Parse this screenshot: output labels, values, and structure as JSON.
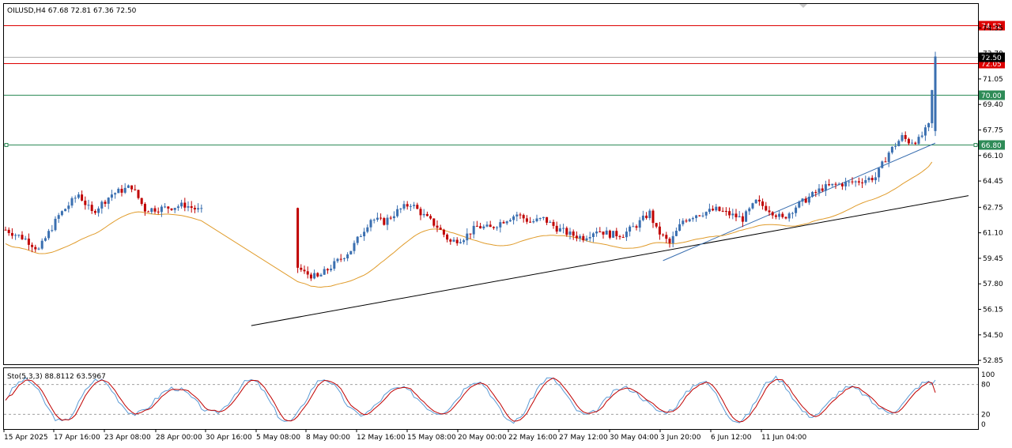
{
  "header": {
    "symbol_info": "OILUSD,H4  67.68 72.81 67.36 72.50"
  },
  "sub_header": {
    "stoch_info": "Sto(5,3,3) 88.8112 63.5967"
  },
  "chart_data": [
    {
      "type": "candlestick",
      "symbol": "OILUSD",
      "timeframe": "H4",
      "ohlc_last": {
        "open": 67.68,
        "high": 72.81,
        "low": 67.36,
        "close": 72.5
      },
      "y_ticks": [
        "52.85",
        "54.50",
        "56.15",
        "57.80",
        "59.45",
        "61.10",
        "62.75",
        "64.45",
        "66.10",
        "67.75",
        "69.40",
        "71.05",
        "72.70",
        "74.35"
      ],
      "ylim": [
        52.6,
        75.9
      ],
      "x_ticks": [
        "15 Apr 2025",
        "17 Apr 16:00",
        "23 Apr 08:00",
        "28 Apr 00:00",
        "30 Apr 16:00",
        "5 May 08:00",
        "8 May 00:00",
        "12 May 16:00",
        "15 May 08:00",
        "20 May 00:00",
        "22 May 16:00",
        "27 May 12:00",
        "30 May 04:00",
        "3 Jun 20:00",
        "6 Jun 12:00",
        "11 Jun 04:00"
      ],
      "levels": [
        {
          "label": "74.52",
          "value": 74.52,
          "color": "#dd0000",
          "kind": "red"
        },
        {
          "label": "72.05",
          "value": 72.05,
          "color": "#dd0000",
          "kind": "red"
        },
        {
          "label": "70.00",
          "value": 70.0,
          "color": "#2e8b57",
          "kind": "green"
        },
        {
          "label": "66.80",
          "value": 66.8,
          "color": "#2e8b57",
          "kind": "green"
        }
      ],
      "current_price": {
        "label": "72.50",
        "value": 72.5
      },
      "price_line_value": 72.5,
      "trendlines": [
        {
          "color": "#000000",
          "start": {
            "index": 74,
            "price": 55.1
          },
          "end": {
            "index": 290,
            "price": 63.5
          }
        },
        {
          "color": "#3a6fb0",
          "start": {
            "index": 198,
            "price": 59.3
          },
          "end": {
            "index": 280,
            "price": 66.9
          }
        }
      ],
      "ma_color": "#e09b2a",
      "candle_up_color": "#3a6fb0",
      "candle_down_color": "#c00000"
    },
    {
      "type": "line",
      "name": "Sto(5,3,3)",
      "main_value": 88.8112,
      "signal_value": 63.5967,
      "y_ticks": [
        "100",
        "80",
        "20",
        "0"
      ],
      "ylim": [
        0,
        100
      ],
      "levels": [
        80,
        20
      ],
      "main_color": "#5b9bd5",
      "signal_color": "#c00000"
    }
  ]
}
